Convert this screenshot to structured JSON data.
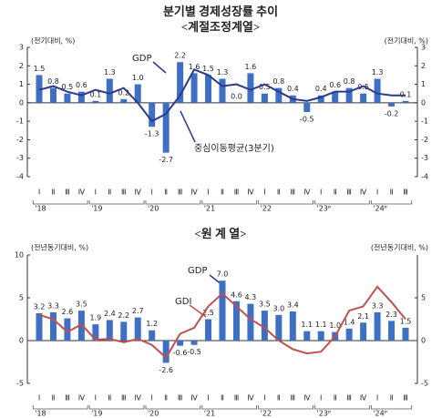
{
  "chart_data": [
    {
      "type": "bar",
      "title": "분기별 경제성장률 추이",
      "subtitle": "<계절조정계열>",
      "y_axis_label": "(전기대비, %)",
      "y2_axis_label": "(전기대비, %)",
      "categories": [
        "Ⅰ",
        "Ⅱ",
        "Ⅲ",
        "Ⅳ",
        "Ⅰ",
        "Ⅱ",
        "Ⅲ",
        "Ⅳ",
        "Ⅰ",
        "Ⅱ",
        "Ⅲ",
        "Ⅳ",
        "Ⅰ",
        "Ⅱ",
        "Ⅲ",
        "Ⅳ",
        "Ⅰ",
        "Ⅱ",
        "Ⅲ",
        "Ⅳ",
        "Ⅰ",
        "Ⅱ",
        "Ⅲ",
        "Ⅳ",
        "Ⅰ",
        "Ⅱ",
        "Ⅲ"
      ],
      "year_labels": [
        "'18",
        "'19",
        "'20",
        "'21",
        "'22",
        "'23ᴾ",
        "'24ᴾ"
      ],
      "ylim": [
        -4,
        3
      ],
      "yticks": [
        -4,
        -3,
        -2,
        -1,
        0,
        1,
        2,
        3
      ],
      "y2lim": [
        -4,
        3
      ],
      "y2ticks": [
        -4,
        -3,
        -2,
        -1,
        0,
        1,
        2,
        3
      ],
      "series": [
        {
          "name": "GDP",
          "type": "bar",
          "color": "#3e6fc2",
          "values": [
            1.5,
            0.8,
            0.5,
            0.6,
            0.1,
            1.3,
            0.2,
            1.0,
            -1.3,
            -2.7,
            2.2,
            1.6,
            1.5,
            1.3,
            0.0,
            1.6,
            0.5,
            0.8,
            0.4,
            -0.5,
            0.4,
            0.6,
            0.8,
            0.5,
            1.3,
            -0.2,
            0.1
          ],
          "value_labels": [
            "1.5",
            "0.8",
            "0.5",
            "0.6",
            "0.1",
            "1.3",
            "0.2",
            "1.0",
            "-1.3",
            "-2.7",
            "2.2",
            "1.6",
            "1.5",
            "1.3",
            "0.0",
            "1.6",
            "0.5",
            "0.8",
            "0.4",
            "-0.5",
            "0.4",
            "0.6",
            "0.8",
            "0.5",
            "1.3",
            "-0.2",
            "0.1"
          ]
        },
        {
          "name": "중심이동평균(3분기)",
          "type": "line",
          "color": "#2b3a8c",
          "values": [
            0.7,
            0.9,
            0.6,
            0.4,
            0.7,
            0.5,
            0.8,
            0.0,
            -1.0,
            -0.6,
            0.4,
            1.8,
            1.5,
            0.9,
            1.0,
            0.7,
            1.0,
            0.6,
            0.2,
            0.1,
            0.3,
            0.6,
            0.6,
            0.9,
            0.5,
            0.4,
            0.4
          ]
        }
      ]
    },
    {
      "type": "bar",
      "title": "<원 계 열>",
      "y_axis_label": "(전년동기대비, %)",
      "y2_axis_label": "(전년동기대비, %)",
      "categories": [
        "Ⅰ",
        "Ⅱ",
        "Ⅲ",
        "Ⅳ",
        "Ⅰ",
        "Ⅱ",
        "Ⅲ",
        "Ⅳ",
        "Ⅰ",
        "Ⅱ",
        "Ⅲ",
        "Ⅳ",
        "Ⅰ",
        "Ⅱ",
        "Ⅲ",
        "Ⅳ",
        "Ⅰ",
        "Ⅱ",
        "Ⅲ",
        "Ⅳ",
        "Ⅰ",
        "Ⅱ",
        "Ⅲ",
        "Ⅳ",
        "Ⅰ",
        "Ⅱ",
        "Ⅲ"
      ],
      "year_labels": [
        "'18",
        "'19",
        "'20",
        "'21",
        "'22",
        "'23ᴾ",
        "'24ᴾ"
      ],
      "ylim": [
        -5,
        10
      ],
      "yticks": [
        -5,
        0,
        5,
        10
      ],
      "y2lim": [
        -5,
        10
      ],
      "y2ticks": [
        -5,
        0,
        5
      ],
      "series": [
        {
          "name": "GDP",
          "type": "bar",
          "color": "#3e6fc2",
          "values": [
            3.2,
            3.3,
            2.6,
            3.5,
            1.9,
            2.4,
            2.2,
            2.7,
            1.2,
            -2.6,
            -0.6,
            -0.5,
            2.5,
            7.0,
            4.6,
            4.3,
            3.5,
            3.0,
            3.4,
            1.1,
            1.1,
            1.0,
            1.4,
            2.1,
            3.3,
            2.3,
            1.5
          ],
          "value_labels": [
            "3.2",
            "3.3",
            "2.6",
            "3.5",
            "1.9",
            "2.4",
            "2.2",
            "2.7",
            "1.2",
            "-2.6",
            "-0.6",
            "-0.5",
            "2.5",
            "7.0",
            "4.6",
            "4.3",
            "3.5",
            "3.0",
            "3.4",
            "1.1",
            "1.1",
            "1.0",
            "1.4",
            "2.1",
            "3.3",
            "2.3",
            "1.5"
          ]
        },
        {
          "name": "GDI",
          "type": "line",
          "axis": "y2",
          "color": "#c0504d",
          "values": [
            3.0,
            2.5,
            1.0,
            1.9,
            0.1,
            0.2,
            -0.2,
            0.2,
            -0.5,
            -2.0,
            0.8,
            1.5,
            4.0,
            5.5,
            4.0,
            2.5,
            1.5,
            0.0,
            -1.0,
            -1.5,
            -1.3,
            0.5,
            3.5,
            4.0,
            6.3,
            4.5,
            2.5
          ]
        }
      ]
    }
  ]
}
